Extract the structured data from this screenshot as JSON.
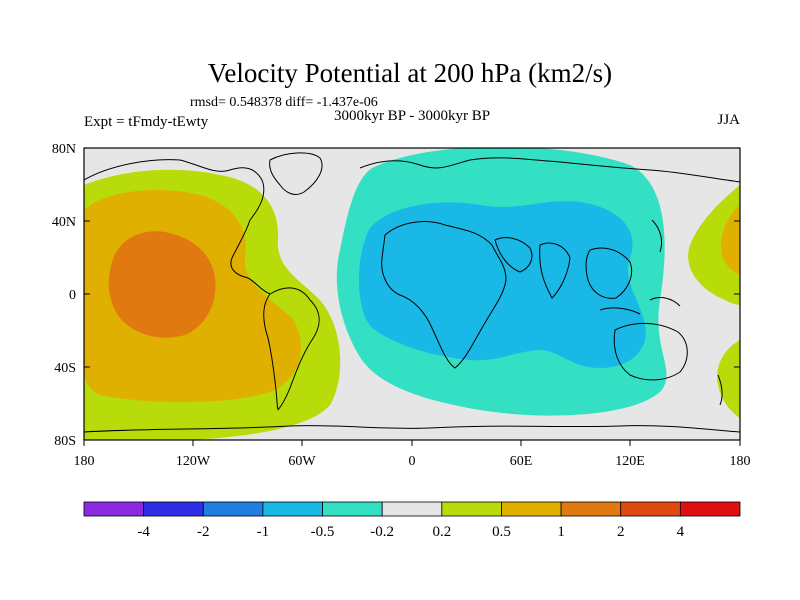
{
  "title": "Velocity Potential at 200 hPa (km2/s)",
  "stats": "rmsd= 0.548378 diff= -1.437e-06",
  "left_label": "Expt = tFmdy-tEwty",
  "center_label": "3000kyr BP - 3000kyr BP",
  "right_label": "JJA",
  "lat_ticks": [
    "80N",
    "40N",
    "0",
    "40S",
    "80S"
  ],
  "lon_ticks": [
    "180",
    "120W",
    "60W",
    "0",
    "60E",
    "120E",
    "180"
  ],
  "colorbar": {
    "colors": [
      "#8a2be2",
      "#2e2ee6",
      "#1e7fe0",
      "#1ab8e6",
      "#33e0c4",
      "#e6e6e6",
      "#b8dc0a",
      "#e0b000",
      "#e07a10",
      "#e04a10",
      "#e01010"
    ],
    "labels": [
      "-4",
      "-2",
      "-1",
      "-0.5",
      "-0.2",
      "0.2",
      "0.5",
      "1",
      "2",
      "4"
    ]
  },
  "colors": {
    "background": "#e6e6e6",
    "green": "#b8dc0a",
    "orange": "#e0b000",
    "dark_orange": "#e07a10",
    "teal": "#33e0c4",
    "blue": "#1ab8e6"
  }
}
